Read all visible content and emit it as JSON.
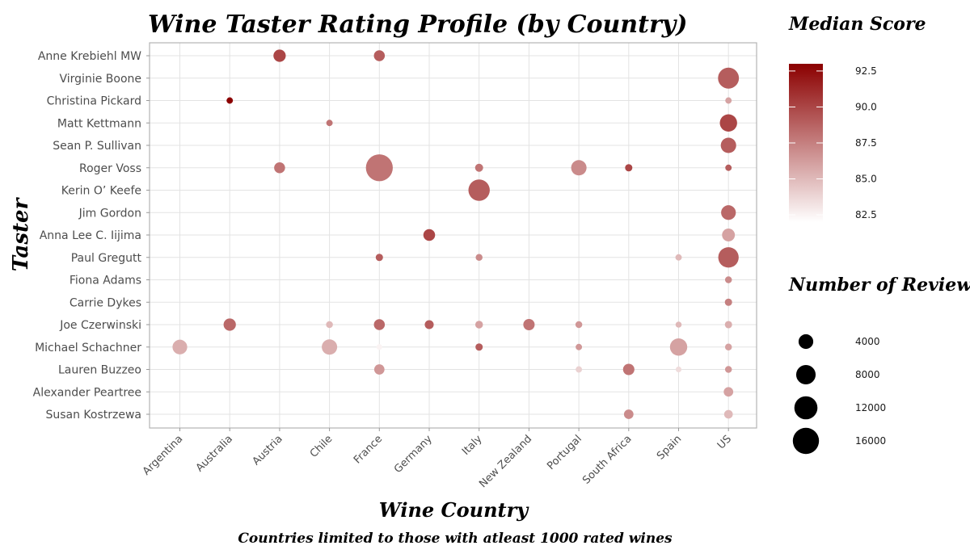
{
  "chart_data": {
    "type": "scatter",
    "title": "Wine Taster Rating Profile (by Country)",
    "subtitle": "Countries limited to those with atleast 1000 rated wines",
    "xlabel": "Wine Country",
    "ylabel": "Taster",
    "countries": [
      "Argentina",
      "Australia",
      "Austria",
      "Chile",
      "France",
      "Germany",
      "Italy",
      "New Zealand",
      "Portugal",
      "South Africa",
      "Spain",
      "US"
    ],
    "tasters": [
      "Anne Krebiehl MW",
      "Virginie Boone",
      "Christina Pickard",
      "Matt Kettmann",
      "Sean P. Sullivan",
      "Roger Voss",
      "Kerin O’ Keefe",
      "Jim Gordon",
      "Anna Lee C. Iijima",
      "Paul Gregutt",
      "Fiona Adams",
      "Carrie Dykes",
      "Joe Czerwinski",
      "Michael Schachner",
      "Lauren Buzzeo",
      "Alexander Peartree",
      "Susan Kostrzewa"
    ],
    "grid": true,
    "color_legend": {
      "title": "Median Score",
      "range": [
        82,
        93
      ],
      "ticks": [
        92.5,
        90.0,
        87.5,
        85.0,
        82.5
      ],
      "color_low": "#ffffff",
      "color_high": "#8b0000"
    },
    "size_legend": {
      "title": "Number of Reviews",
      "values": [
        4000,
        8000,
        12000,
        16000
      ]
    },
    "points": [
      {
        "taster": "Anne Krebiehl MW",
        "country": "Austria",
        "reviews": 2500,
        "median": 90.0
      },
      {
        "taster": "Anne Krebiehl MW",
        "country": "France",
        "reviews": 1800,
        "median": 89.0
      },
      {
        "taster": "Virginie Boone",
        "country": "US",
        "reviews": 9500,
        "median": 89.0
      },
      {
        "taster": "Christina Pickard",
        "country": "Australia",
        "reviews": 300,
        "median": 93.0
      },
      {
        "taster": "Christina Pickard",
        "country": "US",
        "reviews": 300,
        "median": 86.0
      },
      {
        "taster": "Matt Kettmann",
        "country": "Chile",
        "reviews": 300,
        "median": 88.0
      },
      {
        "taster": "Matt Kettmann",
        "country": "US",
        "reviews": 6000,
        "median": 90.0
      },
      {
        "taster": "Sean P. Sullivan",
        "country": "US",
        "reviews": 4500,
        "median": 89.0
      },
      {
        "taster": "Roger Voss",
        "country": "Austria",
        "reviews": 1800,
        "median": 88.0
      },
      {
        "taster": "Roger Voss",
        "country": "France",
        "reviews": 17000,
        "median": 88.0
      },
      {
        "taster": "Roger Voss",
        "country": "Italy",
        "reviews": 700,
        "median": 88.0
      },
      {
        "taster": "Roger Voss",
        "country": "Portugal",
        "reviews": 4500,
        "median": 87.0
      },
      {
        "taster": "Roger Voss",
        "country": "South Africa",
        "reviews": 500,
        "median": 90.0
      },
      {
        "taster": "Roger Voss",
        "country": "US",
        "reviews": 300,
        "median": 89.0
      },
      {
        "taster": "Kerin O’ Keefe",
        "country": "Italy",
        "reviews": 10000,
        "median": 89.0
      },
      {
        "taster": "Jim Gordon",
        "country": "US",
        "reviews": 4000,
        "median": 88.5
      },
      {
        "taster": "Anna Lee C. Iijima",
        "country": "Germany",
        "reviews": 2200,
        "median": 90.0
      },
      {
        "taster": "Anna Lee C. Iijima",
        "country": "US",
        "reviews": 2800,
        "median": 86.0
      },
      {
        "taster": "Paul Gregutt",
        "country": "France",
        "reviews": 500,
        "median": 89.0
      },
      {
        "taster": "Paul Gregutt",
        "country": "Italy",
        "reviews": 400,
        "median": 87.0
      },
      {
        "taster": "Paul Gregutt",
        "country": "Spain",
        "reviews": 300,
        "median": 85.0
      },
      {
        "taster": "Paul Gregutt",
        "country": "US",
        "reviews": 9000,
        "median": 89.0
      },
      {
        "taster": "Fiona Adams",
        "country": "US",
        "reviews": 400,
        "median": 87.0
      },
      {
        "taster": "Carrie Dykes",
        "country": "US",
        "reviews": 500,
        "median": 87.5
      },
      {
        "taster": "Joe Czerwinski",
        "country": "Australia",
        "reviews": 2500,
        "median": 88.5
      },
      {
        "taster": "Joe Czerwinski",
        "country": "Chile",
        "reviews": 400,
        "median": 85.0
      },
      {
        "taster": "Joe Czerwinski",
        "country": "France",
        "reviews": 1800,
        "median": 88.5
      },
      {
        "taster": "Joe Czerwinski",
        "country": "Germany",
        "reviews": 1000,
        "median": 89.0
      },
      {
        "taster": "Joe Czerwinski",
        "country": "Italy",
        "reviews": 600,
        "median": 86.0
      },
      {
        "taster": "Joe Czerwinski",
        "country": "New Zealand",
        "reviews": 2000,
        "median": 88.0
      },
      {
        "taster": "Joe Czerwinski",
        "country": "Portugal",
        "reviews": 400,
        "median": 86.5
      },
      {
        "taster": "Joe Czerwinski",
        "country": "Spain",
        "reviews": 250,
        "median": 85.0
      },
      {
        "taster": "Joe Czerwinski",
        "country": "US",
        "reviews": 500,
        "median": 85.5
      },
      {
        "taster": "Michael Schachner",
        "country": "Argentina",
        "reviews": 4000,
        "median": 85.5
      },
      {
        "taster": "Michael Schachner",
        "country": "Chile",
        "reviews": 4500,
        "median": 85.5
      },
      {
        "taster": "Michael Schachner",
        "country": "France",
        "reviews": 200,
        "median": 82.5
      },
      {
        "taster": "Michael Schachner",
        "country": "Italy",
        "reviews": 500,
        "median": 89.0
      },
      {
        "taster": "Michael Schachner",
        "country": "Portugal",
        "reviews": 300,
        "median": 86.5
      },
      {
        "taster": "Michael Schachner",
        "country": "Spain",
        "reviews": 6000,
        "median": 86.0
      },
      {
        "taster": "Michael Schachner",
        "country": "US",
        "reviews": 400,
        "median": 86.0
      },
      {
        "taster": "Lauren Buzzeo",
        "country": "France",
        "reviews": 1500,
        "median": 86.5
      },
      {
        "taster": "Lauren Buzzeo",
        "country": "Portugal",
        "reviews": 300,
        "median": 84.0
      },
      {
        "taster": "Lauren Buzzeo",
        "country": "South Africa",
        "reviews": 2000,
        "median": 88.0
      },
      {
        "taster": "Lauren Buzzeo",
        "country": "Spain",
        "reviews": 200,
        "median": 83.5
      },
      {
        "taster": "Lauren Buzzeo",
        "country": "US",
        "reviews": 400,
        "median": 86.5
      },
      {
        "taster": "Alexander Peartree",
        "country": "US",
        "reviews": 1200,
        "median": 86.0
      },
      {
        "taster": "Susan Kostrzewa",
        "country": "South Africa",
        "reviews": 1200,
        "median": 87.0
      },
      {
        "taster": "Susan Kostrzewa",
        "country": "US",
        "reviews": 900,
        "median": 85.0
      }
    ]
  }
}
